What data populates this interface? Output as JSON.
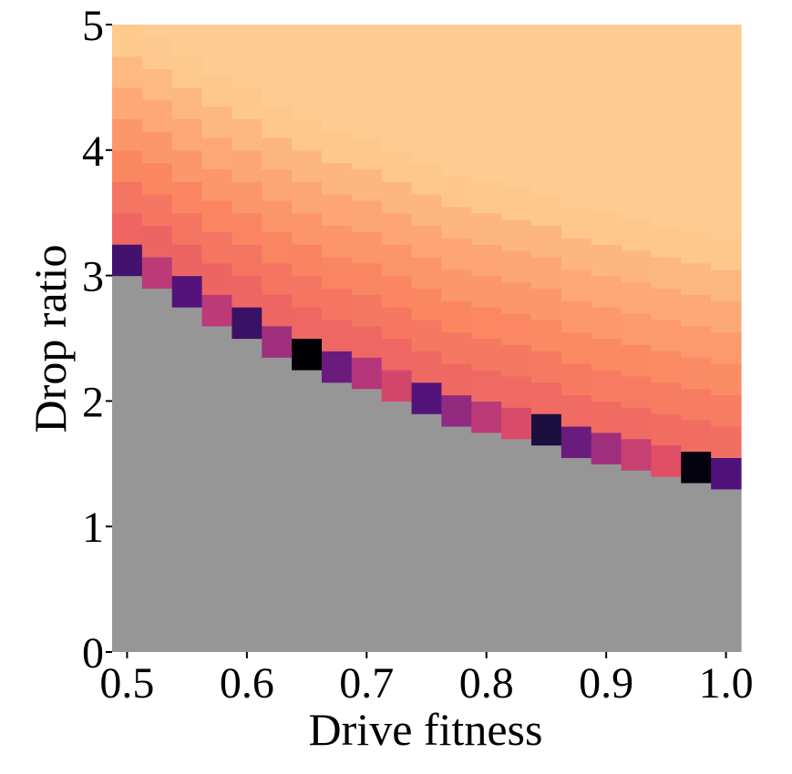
{
  "chart_data": {
    "type": "heatmap",
    "title": "",
    "xlabel": "Drive fitness",
    "ylabel": "Drop ratio",
    "xlim": [
      0.5,
      1.0
    ],
    "ylim": [
      0,
      5
    ],
    "x_ticks": [
      "0.5",
      "0.6",
      "0.7",
      "0.8",
      "0.9",
      "1.0"
    ],
    "y_ticks": [
      "0",
      "1",
      "2",
      "3",
      "4",
      "5"
    ],
    "grid": false,
    "legend": "none",
    "colormap": "magma",
    "masked_color": "#969696",
    "x_centers": [
      0.5,
      0.525,
      0.55,
      0.575,
      0.6,
      0.625,
      0.65,
      0.675,
      0.7,
      0.725,
      0.75,
      0.775,
      0.8,
      0.825,
      0.85,
      0.875,
      0.9,
      0.925,
      0.95,
      0.975,
      1.0
    ],
    "y_bin_size": 0.25,
    "boundary_drop_ratio": [
      3.0,
      2.9,
      2.75,
      2.6,
      2.5,
      2.35,
      2.25,
      2.15,
      2.1,
      2.0,
      1.9,
      1.8,
      1.75,
      1.7,
      1.65,
      1.55,
      1.5,
      1.45,
      1.4,
      1.35,
      1.3
    ],
    "boundary_value": [
      0.22,
      0.52,
      0.26,
      0.52,
      0.2,
      0.45,
      0.0,
      0.32,
      0.5,
      0.58,
      0.26,
      0.42,
      0.52,
      0.6,
      0.12,
      0.32,
      0.45,
      0.55,
      0.62,
      0.02,
      0.25
    ]
  }
}
